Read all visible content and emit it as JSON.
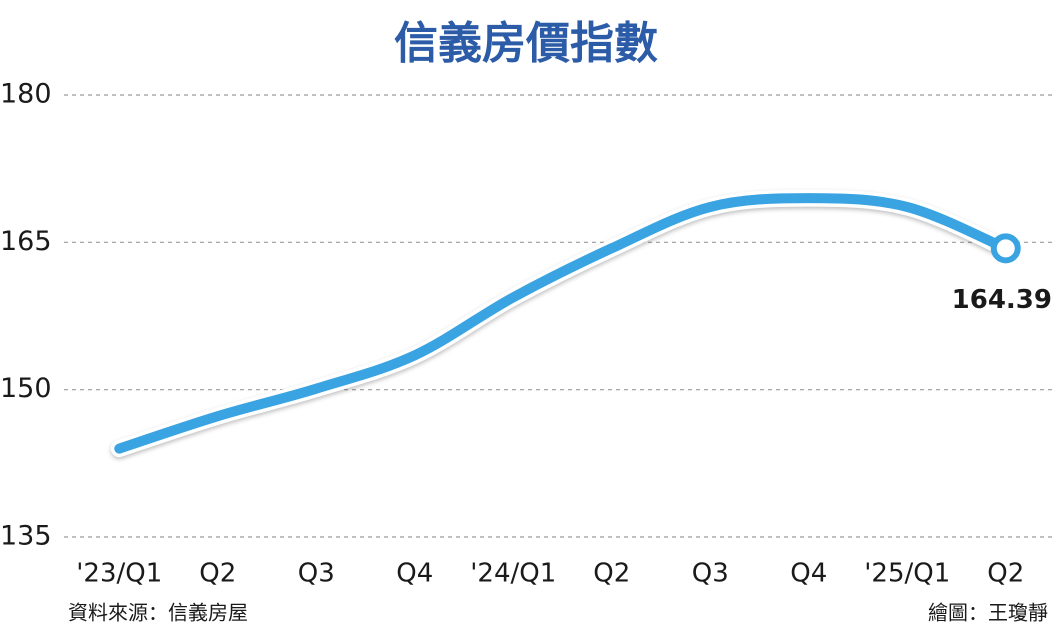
{
  "chart_data": {
    "type": "line",
    "title": "信義房價指數",
    "categories": [
      "'23/Q1",
      "Q2",
      "Q3",
      "Q4",
      "'24/Q1",
      "Q2",
      "Q3",
      "Q4",
      "'25/Q1",
      "Q2"
    ],
    "values": [
      144.0,
      147.3,
      150.1,
      153.5,
      159.4,
      164.4,
      168.6,
      169.5,
      168.6,
      164.39
    ],
    "color": "#3aa3e2",
    "ylim": [
      135,
      180
    ],
    "yticks": [
      135,
      150,
      165,
      180
    ],
    "grid": true,
    "source": "資料來源：信義房屋",
    "credit": "繪圖：王瓊靜"
  }
}
